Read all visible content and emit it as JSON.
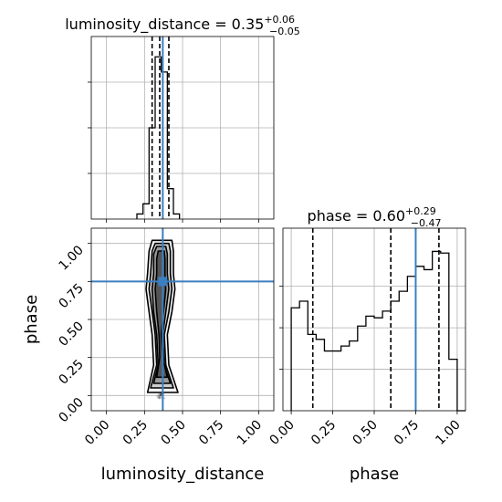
{
  "chart_data": {
    "type": "corner",
    "parameters": [
      "luminosity_distance",
      "phase"
    ],
    "truths": {
      "luminosity_distance": 0.37,
      "phase": 0.75
    },
    "accent_color": "#3a7fc1",
    "grid": true,
    "titles": {
      "luminosity_distance": {
        "prefix": "luminosity_distance = 0.35",
        "plus": "+0.06",
        "minus": "−0.05"
      },
      "phase": {
        "prefix": "phase = 0.60",
        "plus": "+0.29",
        "minus": "−0.47"
      }
    },
    "axis_labels": {
      "x_left": "luminosity_distance",
      "x_right": "phase",
      "y_lower": "phase"
    },
    "ticks": {
      "luminosity_distance": [
        "0.00",
        "0.25",
        "0.50",
        "0.75",
        "1.00"
      ],
      "phase": [
        "0.00",
        "0.25",
        "0.50",
        "0.75",
        "1.00"
      ]
    },
    "hist_luminosity_distance": {
      "range": [
        -0.1,
        1.1
      ],
      "quantiles": [
        0.3,
        0.35,
        0.41
      ],
      "bins": [
        {
          "x0": 0.2,
          "x1": 0.24,
          "v": 0.1
        },
        {
          "x0": 0.24,
          "x1": 0.28,
          "v": 0.3
        },
        {
          "x0": 0.28,
          "x1": 0.32,
          "v": 1.8
        },
        {
          "x0": 0.32,
          "x1": 0.36,
          "v": 3.2
        },
        {
          "x0": 0.36,
          "x1": 0.4,
          "v": 2.9
        },
        {
          "x0": 0.4,
          "x1": 0.44,
          "v": 0.6
        },
        {
          "x0": 0.44,
          "x1": 0.48,
          "v": 0.1
        }
      ]
    },
    "hist_phase": {
      "range": [
        -0.05,
        1.05
      ],
      "quantiles": [
        0.13,
        0.6,
        0.89
      ],
      "bins": [
        {
          "x0": 0.0,
          "x1": 0.05,
          "v": 0.62
        },
        {
          "x0": 0.05,
          "x1": 0.1,
          "v": 0.66
        },
        {
          "x0": 0.1,
          "x1": 0.15,
          "v": 0.46
        },
        {
          "x0": 0.15,
          "x1": 0.2,
          "v": 0.43
        },
        {
          "x0": 0.2,
          "x1": 0.25,
          "v": 0.36
        },
        {
          "x0": 0.25,
          "x1": 0.3,
          "v": 0.36
        },
        {
          "x0": 0.3,
          "x1": 0.35,
          "v": 0.39
        },
        {
          "x0": 0.35,
          "x1": 0.4,
          "v": 0.42
        },
        {
          "x0": 0.4,
          "x1": 0.45,
          "v": 0.51
        },
        {
          "x0": 0.45,
          "x1": 0.5,
          "v": 0.57
        },
        {
          "x0": 0.5,
          "x1": 0.55,
          "v": 0.56
        },
        {
          "x0": 0.55,
          "x1": 0.6,
          "v": 0.6
        },
        {
          "x0": 0.6,
          "x1": 0.65,
          "v": 0.66
        },
        {
          "x0": 0.65,
          "x1": 0.7,
          "v": 0.72
        },
        {
          "x0": 0.7,
          "x1": 0.75,
          "v": 0.81
        },
        {
          "x0": 0.75,
          "x1": 0.8,
          "v": 0.87
        },
        {
          "x0": 0.8,
          "x1": 0.85,
          "v": 0.85
        },
        {
          "x0": 0.85,
          "x1": 0.9,
          "v": 0.96
        },
        {
          "x0": 0.9,
          "x1": 0.95,
          "v": 0.95
        },
        {
          "x0": 0.95,
          "x1": 1.0,
          "v": 0.31
        },
        {
          "x0": 1.0,
          "x1": 1.05,
          "v": 0.0
        }
      ]
    },
    "scatter_2d": {
      "x_range": [
        -0.1,
        1.1
      ],
      "y_range": [
        -0.1,
        1.1
      ],
      "contours": [
        {
          "phase": [
            0.02,
            0.2,
            0.4,
            0.55,
            0.7,
            0.8,
            0.95,
            1.02
          ],
          "ld_low": [
            0.27,
            0.31,
            0.3,
            0.28,
            0.26,
            0.27,
            0.28,
            0.3
          ],
          "ld_high": [
            0.47,
            0.41,
            0.4,
            0.43,
            0.45,
            0.44,
            0.44,
            0.43
          ]
        },
        {
          "phase": [
            0.05,
            0.2,
            0.4,
            0.55,
            0.7,
            0.8,
            0.95,
            1.0
          ],
          "ld_low": [
            0.29,
            0.33,
            0.32,
            0.3,
            0.28,
            0.29,
            0.3,
            0.32
          ],
          "ld_high": [
            0.44,
            0.39,
            0.38,
            0.41,
            0.43,
            0.42,
            0.42,
            0.41
          ]
        },
        {
          "phase": [
            0.08,
            0.2,
            0.4,
            0.55,
            0.7,
            0.8,
            0.93,
            0.98
          ],
          "ld_low": [
            0.31,
            0.34,
            0.33,
            0.31,
            0.3,
            0.31,
            0.31,
            0.33
          ],
          "ld_high": [
            0.42,
            0.38,
            0.37,
            0.39,
            0.41,
            0.4,
            0.4,
            0.39
          ]
        },
        {
          "phase": [
            0.12,
            0.25,
            0.4,
            0.55,
            0.7,
            0.8,
            0.9,
            0.95
          ],
          "ld_low": [
            0.33,
            0.35,
            0.345,
            0.33,
            0.32,
            0.33,
            0.33,
            0.34
          ],
          "ld_high": [
            0.4,
            0.37,
            0.36,
            0.375,
            0.39,
            0.385,
            0.385,
            0.38
          ]
        }
      ]
    }
  }
}
